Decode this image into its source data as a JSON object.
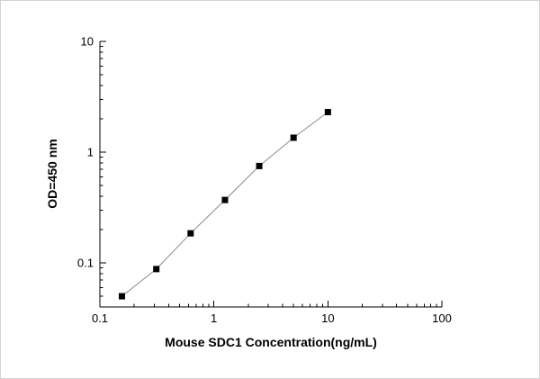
{
  "chart_data": {
    "type": "scatter",
    "x": [
      0.156,
      0.3125,
      0.625,
      1.25,
      2.5,
      5,
      10
    ],
    "y": [
      0.05,
      0.088,
      0.185,
      0.37,
      0.75,
      1.35,
      2.3
    ],
    "title": "",
    "xlabel": "Mouse SDC1 Concentration(ng/mL)",
    "ylabel": "OD=450 nm",
    "x_scale": "log",
    "y_scale": "log",
    "x_range": [
      0.1,
      100
    ],
    "y_range": [
      0.04,
      10
    ],
    "x_ticks": [
      0.1,
      1,
      10,
      100
    ],
    "y_ticks": [
      0.1,
      1,
      10
    ],
    "x_tick_labels": [
      "0.1",
      "1",
      "10",
      "100"
    ],
    "y_tick_labels": [
      "0.1",
      "1",
      "10"
    ],
    "grid": false,
    "legend": false,
    "marker": "filled-square",
    "marker_color": "#000000",
    "line_color": "#8c8c8c",
    "axis_color": "#000000",
    "background_color": "#ffffff"
  }
}
